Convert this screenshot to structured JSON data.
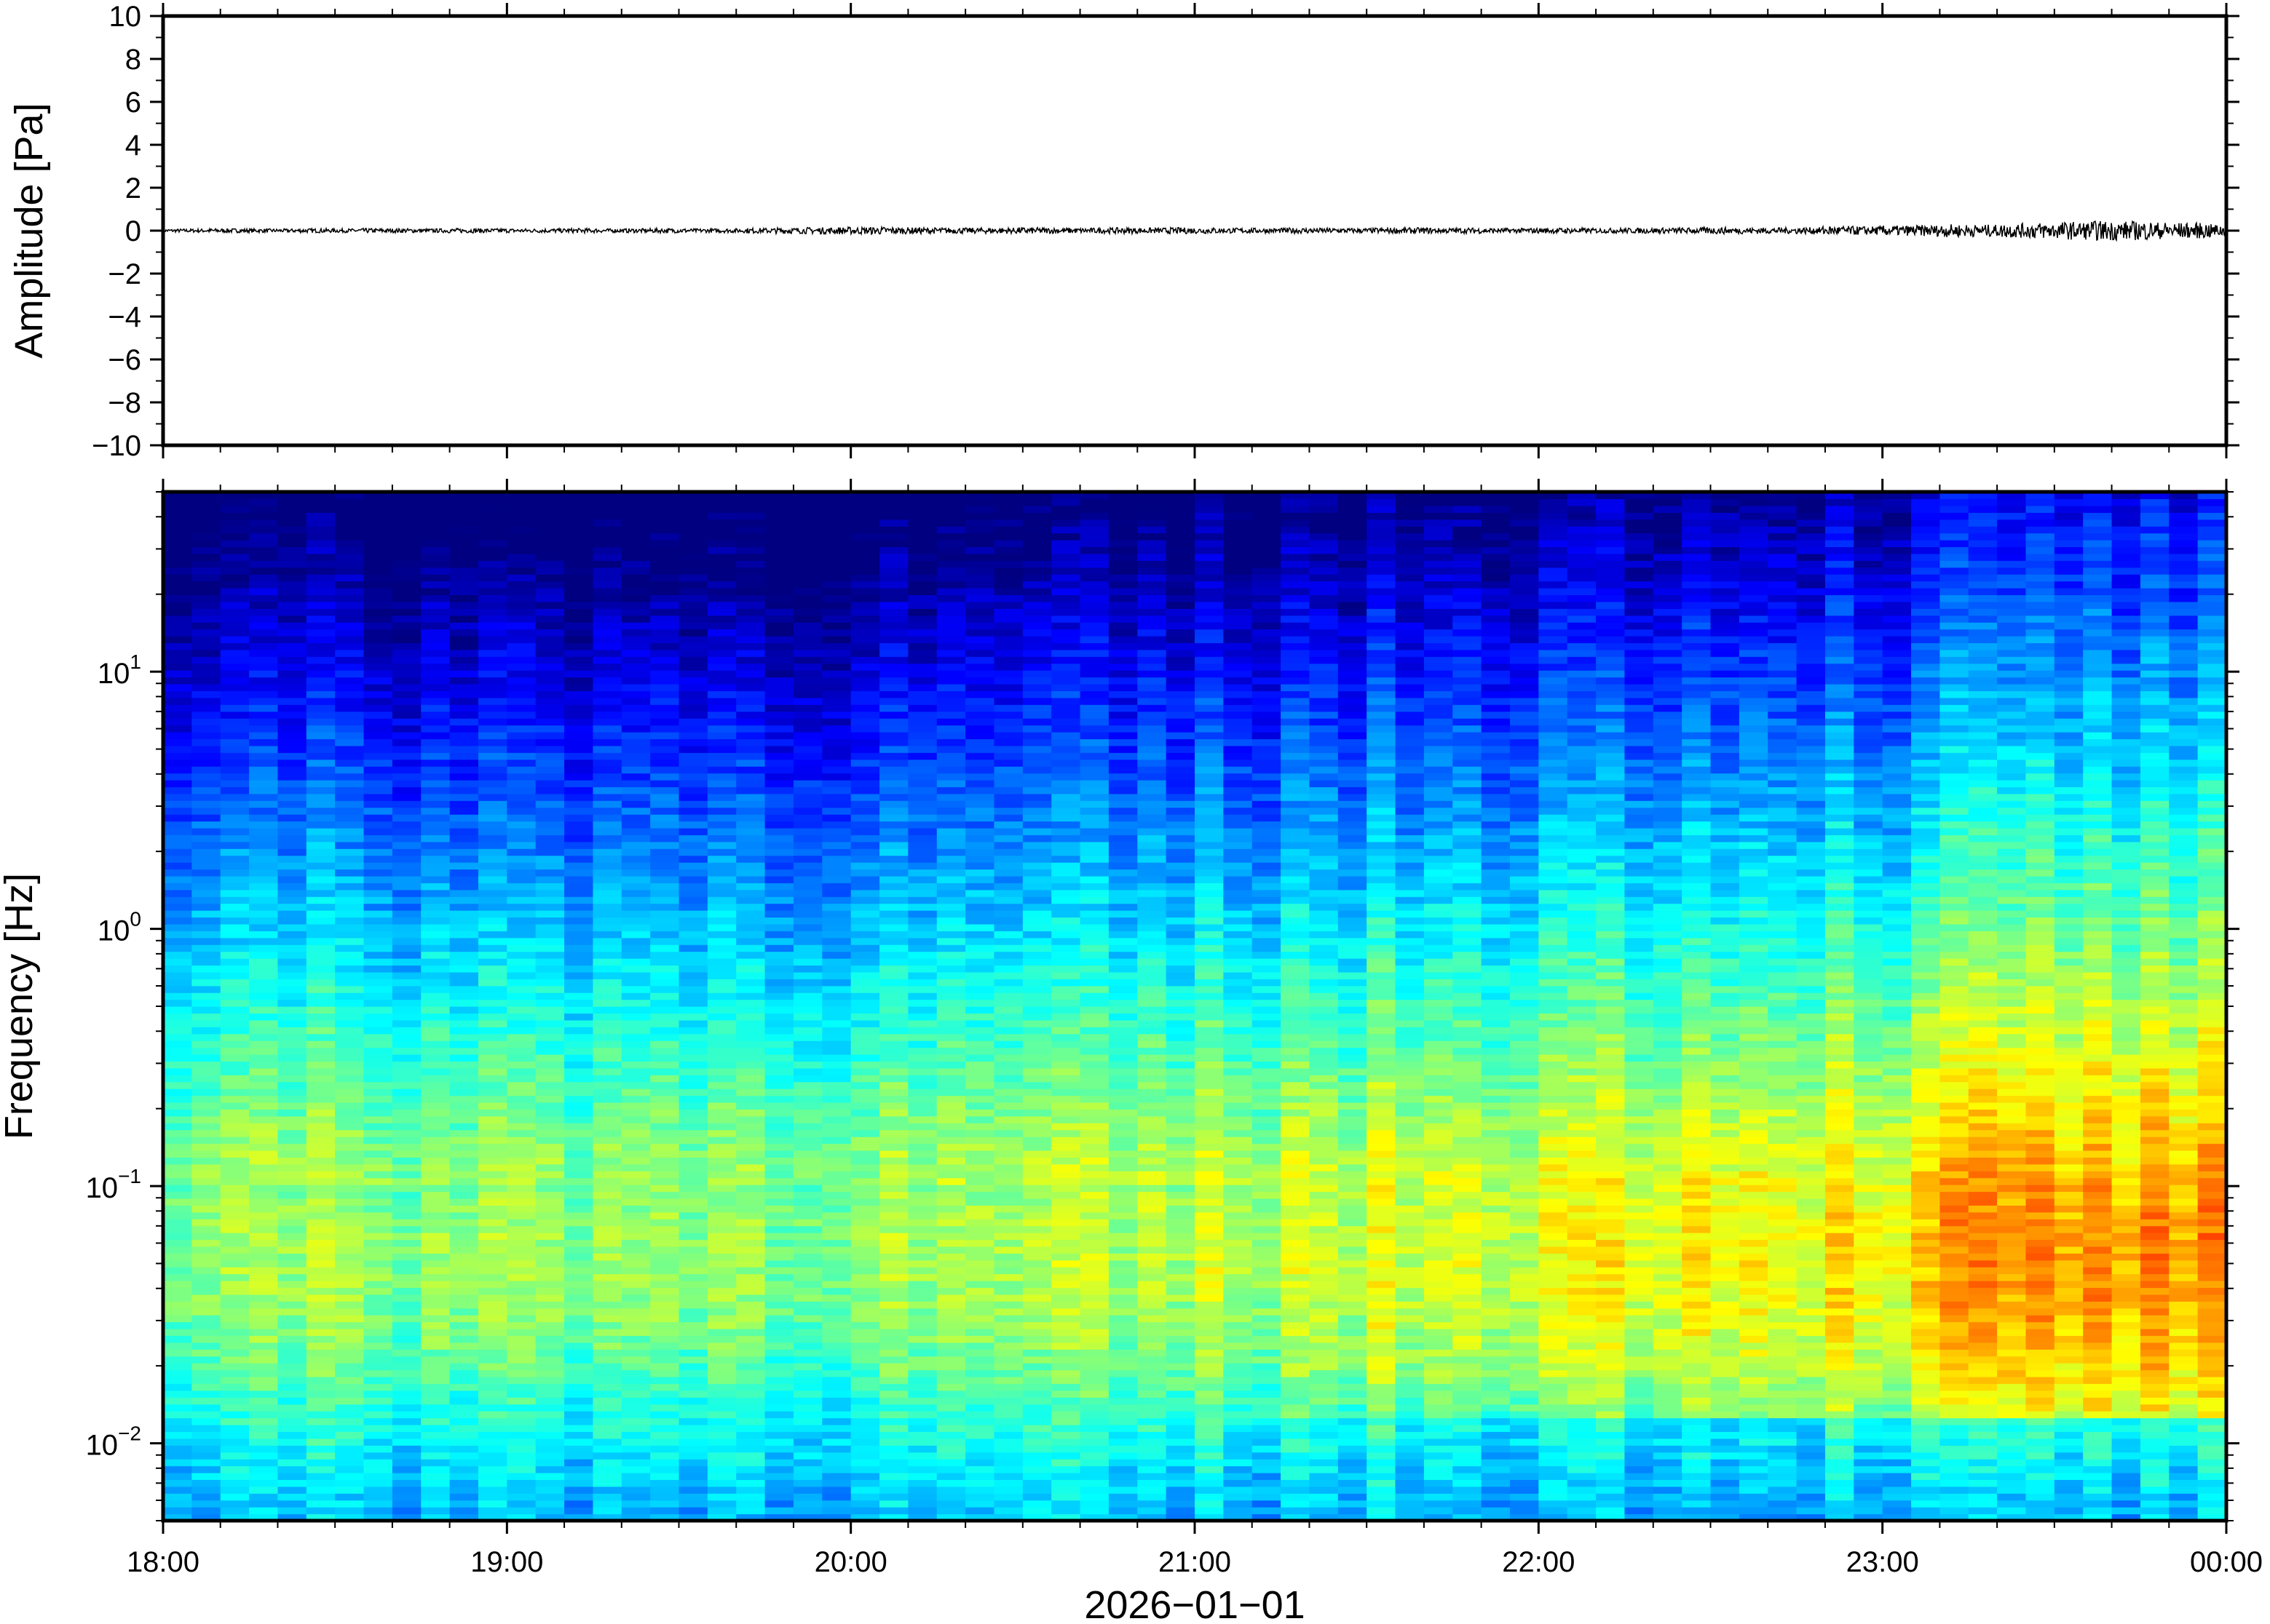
{
  "chart_data": [
    {
      "type": "line",
      "ylabel": "Amplitude [Pa]",
      "ylim": [
        -10,
        10
      ],
      "yticks": [
        "10",
        "8",
        "6",
        "4",
        "2",
        "0",
        "−2",
        "−4",
        "−6",
        "−8",
        "−10"
      ],
      "series": [
        {
          "values": [
            0.02,
            -0.03,
            0.05,
            -0.04,
            0.03,
            -0.05,
            0.04,
            -0.06,
            0.05,
            -0.04,
            0.06,
            -0.05,
            0.04,
            -0.05,
            0.06,
            -0.04,
            0.05,
            -0.06,
            0.04,
            -0.05,
            0.08,
            -0.1,
            0.12,
            -0.14,
            0.15,
            -0.12,
            0.1,
            -0.09,
            0.1,
            -0.11,
            0.09,
            -0.08,
            0.1,
            -0.09,
            0.11,
            -0.1,
            0.08,
            -0.07,
            0.09,
            -0.08,
            0.07,
            -0.09,
            0.1,
            -0.08,
            0.09,
            -0.07,
            0.08,
            -0.09,
            0.07,
            -0.08,
            0.09,
            -0.1,
            0.12,
            -0.11,
            0.1,
            -0.12,
            0.2,
            -0.18,
            0.22,
            -0.25,
            0.3,
            -0.28,
            0.35,
            -0.4,
            0.45,
            -0.5,
            0.48,
            -0.42,
            0.38,
            -0.3
          ]
        }
      ]
    },
    {
      "type": "heatmap",
      "xlabel": "2026−01−01",
      "ylabel": "Frequency [Hz]",
      "x_tick_labels": [
        "18:00",
        "19:00",
        "20:00",
        "21:00",
        "22:00",
        "23:00",
        "00:00"
      ],
      "y_ticks": [
        {
          "base": "10",
          "exp": "1",
          "value": 10
        },
        {
          "base": "10",
          "exp": "0",
          "value": 1
        },
        {
          "base": "10",
          "exp": "−1",
          "value": 0.1
        },
        {
          "base": "10",
          "exp": "−2",
          "value": 0.01
        }
      ],
      "ylim": [
        0.005,
        50
      ],
      "yscale": "log",
      "colormap": "jet",
      "columns": 72
    }
  ]
}
